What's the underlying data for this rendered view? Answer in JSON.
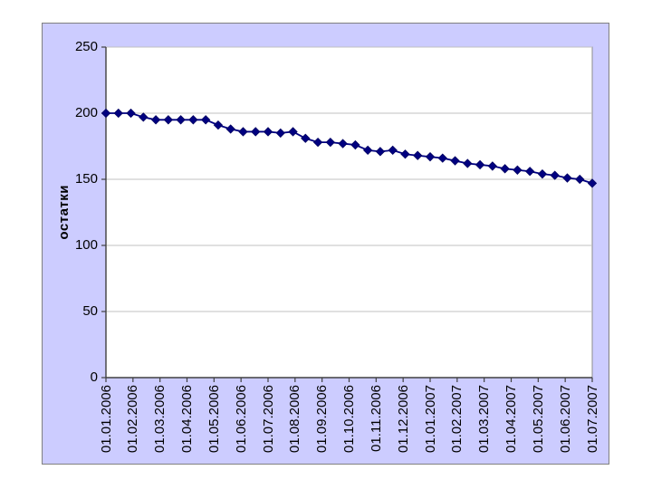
{
  "chart_data": {
    "type": "line",
    "title": "",
    "xlabel": "",
    "ylabel": "остатки",
    "ylim": [
      0,
      250
    ],
    "y_ticks": [
      0,
      50,
      100,
      150,
      200,
      250
    ],
    "grid": "horizontal",
    "legend": "none",
    "x_tick_labels": [
      "01.01.2006",
      "01.02.2006",
      "01.03.2006",
      "01.04.2006",
      "01.05.2006",
      "01.06.2006",
      "01.07.2006",
      "01.08.2006",
      "01.09.2006",
      "01.10.2006",
      "01.11.2006",
      "01.12.2006",
      "01.01.2007",
      "01.02.2007",
      "01.03.2007",
      "01.04.2007",
      "01.05.2007",
      "01.06.2007",
      "01.07.2007"
    ],
    "series": [
      {
        "name": "остатки",
        "marker": "diamond",
        "values": [
          200,
          200,
          200,
          197,
          195,
          195,
          195,
          195,
          195,
          191,
          188,
          186,
          186,
          186,
          185,
          186,
          181,
          178,
          178,
          177,
          176,
          172,
          171,
          172,
          169,
          168,
          167,
          166,
          164,
          162,
          161,
          160,
          158,
          157,
          156,
          154,
          153,
          151,
          150,
          147
        ]
      }
    ],
    "style": {
      "chart_background": "#ccccff",
      "plot_background": "#ffffff",
      "series_color": "#000080",
      "marker_edge_color": "#000060",
      "gridline_color": "#c0c0c0",
      "axis_color": "#404040",
      "border_color": "#8c8c8c",
      "text_color": "#000000"
    }
  }
}
